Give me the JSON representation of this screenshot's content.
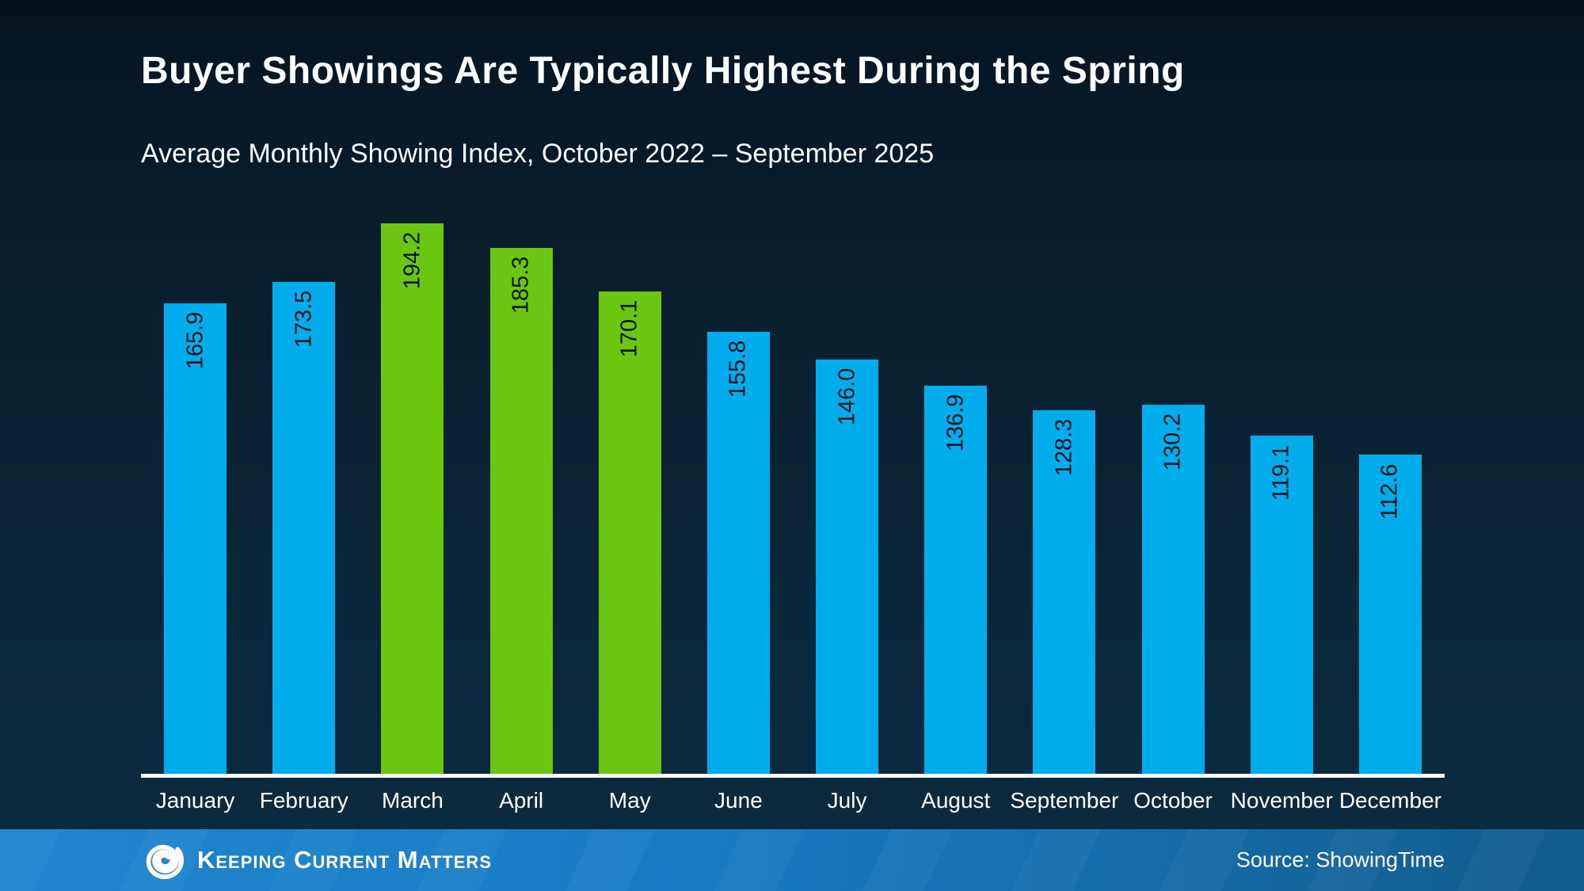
{
  "header": {
    "title": "Buyer Showings Are Typically Highest During the Spring",
    "subtitle": "Average Monthly Showing Index, October 2022 – September 2025"
  },
  "chart_data": {
    "type": "bar",
    "title": "Buyer Showings Are Typically Highest During the Spring",
    "subtitle": "Average Monthly Showing Index, October 2022 – September 2025",
    "categories": [
      "January",
      "February",
      "March",
      "April",
      "May",
      "June",
      "July",
      "August",
      "September",
      "October",
      "November",
      "December"
    ],
    "values": [
      165.9,
      173.5,
      194.2,
      185.3,
      170.1,
      155.8,
      146.0,
      136.9,
      128.3,
      130.2,
      119.1,
      112.6
    ],
    "value_decimals": 1,
    "highlighted_categories": [
      "March",
      "April",
      "May"
    ],
    "xlabel": "",
    "ylabel": "",
    "ylim": [
      0,
      203
    ],
    "grid": false,
    "legend_position": "none",
    "value_labels": "inside-top-rotated",
    "colors": {
      "bar_default": "#00ACEC",
      "bar_highlight": "#6CC611",
      "value_label": "#0A1622",
      "axis_line": "#FFFFFF",
      "background_top": "#06121B",
      "background_bottom": "#0B2A40"
    }
  },
  "footer": {
    "brand_name": "Keeping Current Matters",
    "logo": "kcm-swirl-icon",
    "source_label": "Source: ShowingTime",
    "bar_color_left": "#1E86CF",
    "bar_color_right": "#115C8E"
  }
}
